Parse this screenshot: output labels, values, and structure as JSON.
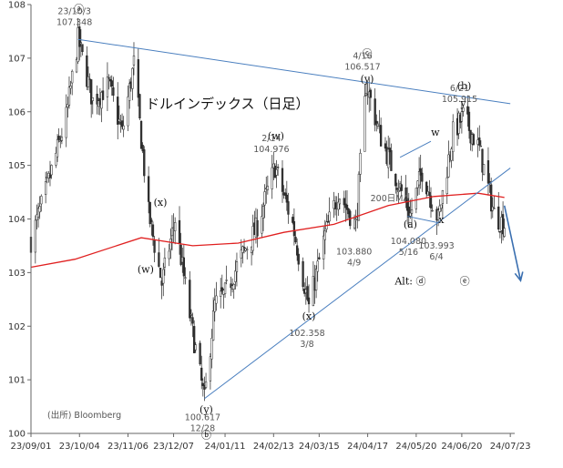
{
  "chart_data": {
    "type": "candlestick",
    "title": "ドルインデックス（日足）",
    "source": "(出所) Bloomberg",
    "xlabel": "",
    "ylabel": "",
    "ylim": [
      100,
      108
    ],
    "yticks": [
      100,
      101,
      102,
      103,
      104,
      105,
      106,
      107,
      108
    ],
    "xlim": [
      "2023-09-01",
      "2024-07-26"
    ],
    "xticks": [
      "23/09/01",
      "23/10/04",
      "23/11/06",
      "23/12/07",
      "24/01/11",
      "24/02/13",
      "24/03/15",
      "24/04/17",
      "24/05/20",
      "24/06/20",
      "24/07/23"
    ],
    "grid": false,
    "legend": "none",
    "anchors": [
      {
        "date": "2023-09-01",
        "value": 103.6
      },
      {
        "date": "2023-09-12",
        "value": 104.6
      },
      {
        "date": "2023-09-25",
        "value": 105.9
      },
      {
        "date": "2023-10-03",
        "value": 107.348
      },
      {
        "date": "2023-10-13",
        "value": 106.2
      },
      {
        "date": "2023-10-24",
        "value": 106.5
      },
      {
        "date": "2023-11-02",
        "value": 105.6
      },
      {
        "date": "2023-11-10",
        "value": 106.9
      },
      {
        "date": "2023-11-20",
        "value": 104.1
      },
      {
        "date": "2023-11-29",
        "value": 102.8
      },
      {
        "date": "2023-12-08",
        "value": 104.0
      },
      {
        "date": "2023-12-18",
        "value": 102.2
      },
      {
        "date": "2023-12-28",
        "value": 100.617
      },
      {
        "date": "2024-01-04",
        "value": 102.4
      },
      {
        "date": "2024-01-11",
        "value": 102.6
      },
      {
        "date": "2024-01-22",
        "value": 103.3
      },
      {
        "date": "2024-02-01",
        "value": 103.8
      },
      {
        "date": "2024-02-14",
        "value": 104.976
      },
      {
        "date": "2024-02-26",
        "value": 103.9
      },
      {
        "date": "2024-03-08",
        "value": 102.358
      },
      {
        "date": "2024-03-19",
        "value": 103.7
      },
      {
        "date": "2024-03-28",
        "value": 104.5
      },
      {
        "date": "2024-04-09",
        "value": 103.88
      },
      {
        "date": "2024-04-16",
        "value": 106.517
      },
      {
        "date": "2024-04-25",
        "value": 105.6
      },
      {
        "date": "2024-05-03",
        "value": 105.0
      },
      {
        "date": "2024-05-16",
        "value": 104.08
      },
      {
        "date": "2024-05-24",
        "value": 104.9
      },
      {
        "date": "2024-06-04",
        "value": 103.993
      },
      {
        "date": "2024-06-14",
        "value": 105.6
      },
      {
        "date": "2024-06-21",
        "value": 105.915
      },
      {
        "date": "2024-07-02",
        "value": 105.3
      },
      {
        "date": "2024-07-12",
        "value": 104.1
      },
      {
        "date": "2024-07-19",
        "value": 103.9
      }
    ],
    "ma": {
      "label": "200日MA",
      "color": "#e02020",
      "points": [
        {
          "date": "2023-09-01",
          "value": 103.1
        },
        {
          "date": "2023-10-01",
          "value": 103.25
        },
        {
          "date": "2023-11-15",
          "value": 103.65
        },
        {
          "date": "2023-12-20",
          "value": 103.5
        },
        {
          "date": "2024-01-20",
          "value": 103.55
        },
        {
          "date": "2024-02-20",
          "value": 103.75
        },
        {
          "date": "2024-03-25",
          "value": 103.9
        },
        {
          "date": "2024-05-01",
          "value": 104.25
        },
        {
          "date": "2024-06-01",
          "value": 104.42
        },
        {
          "date": "2024-07-01",
          "value": 104.48
        },
        {
          "date": "2024-07-19",
          "value": 104.4
        }
      ]
    },
    "trendlines": [
      {
        "name": "upper",
        "color": "#4a7fbf",
        "from": {
          "date": "2023-10-03",
          "value": 107.35
        },
        "to": {
          "date": "2024-07-23",
          "value": 106.15
        }
      },
      {
        "name": "lower",
        "color": "#4a7fbf",
        "from": {
          "date": "2023-12-28",
          "value": 100.65
        },
        "to": {
          "date": "2024-07-23",
          "value": 104.95
        }
      },
      {
        "name": "channel-top",
        "color": "#4a7fbf",
        "from": {
          "date": "2024-05-09",
          "value": 105.15
        },
        "to": {
          "date": "2024-05-30",
          "value": 105.45
        }
      },
      {
        "name": "channel-bottom",
        "color": "#4a7fbf",
        "from": {
          "date": "2024-05-14",
          "value": 104.05
        },
        "to": {
          "date": "2024-06-04",
          "value": 103.93
        }
      }
    ],
    "arrow": {
      "color": "#3a6fb0",
      "from": {
        "date": "2024-07-19",
        "value": 104.25
      },
      "to": {
        "date": "2024-07-30",
        "value": 102.85
      }
    },
    "annotations": [
      {
        "date": "2023-10-03",
        "value": 107.348,
        "date_label": "23/10/3",
        "value_label": "107.348",
        "wave": "ⓐ",
        "pos": "above"
      },
      {
        "date": "2023-12-28",
        "value": 100.617,
        "date_label": "12/28",
        "value_label": "100.617",
        "wave": "ⓑ",
        "sub": "(y)",
        "pos": "below"
      },
      {
        "date": "2024-02-14",
        "value": 104.976,
        "date_label": "2/14",
        "value_label": "104.976",
        "wave": "(w)",
        "pos": "above"
      },
      {
        "date": "2024-03-08",
        "value": 102.358,
        "date_label": "3/8",
        "value_label": "102.358",
        "wave": "(x)",
        "pos": "below"
      },
      {
        "date": "2024-04-09",
        "value": 103.88,
        "date_label": "4/9",
        "value_label": "103.880",
        "pos": "below"
      },
      {
        "date": "2024-04-16",
        "value": 106.517,
        "date_label": "4/16",
        "value_label": "106.517",
        "wave": "ⓒ",
        "sub": "(y)",
        "pos": "above"
      },
      {
        "date": "2024-05-16",
        "value": 104.08,
        "date_label": "5/16",
        "value_label": "104.080",
        "wave": "(a)",
        "pos": "below"
      },
      {
        "date": "2024-06-04",
        "value": 103.993,
        "date_label": "6/4",
        "value_label": "103.993",
        "pos": "below"
      },
      {
        "date": "2024-06-21",
        "value": 105.915,
        "date_label": "6/21",
        "value_label": "105.915",
        "wave": "(b)",
        "pos": "above"
      }
    ],
    "wave_labels": [
      {
        "text": "(x)",
        "date": "2023-11-28",
        "value": 104.25
      },
      {
        "text": "(w)",
        "date": "2023-11-18",
        "value": 103.0
      },
      {
        "text": "w",
        "date": "2024-06-02",
        "value": 105.55
      },
      {
        "text": "x",
        "date": "2024-06-06",
        "value": 103.92
      },
      {
        "text": "y",
        "date": "2024-06-21",
        "value": 106.1
      },
      {
        "text": "Alt: ⓓ",
        "date": "2024-05-16",
        "value": 102.78
      },
      {
        "text": "ⓔ",
        "date": "2024-06-22",
        "value": 102.78
      }
    ]
  }
}
